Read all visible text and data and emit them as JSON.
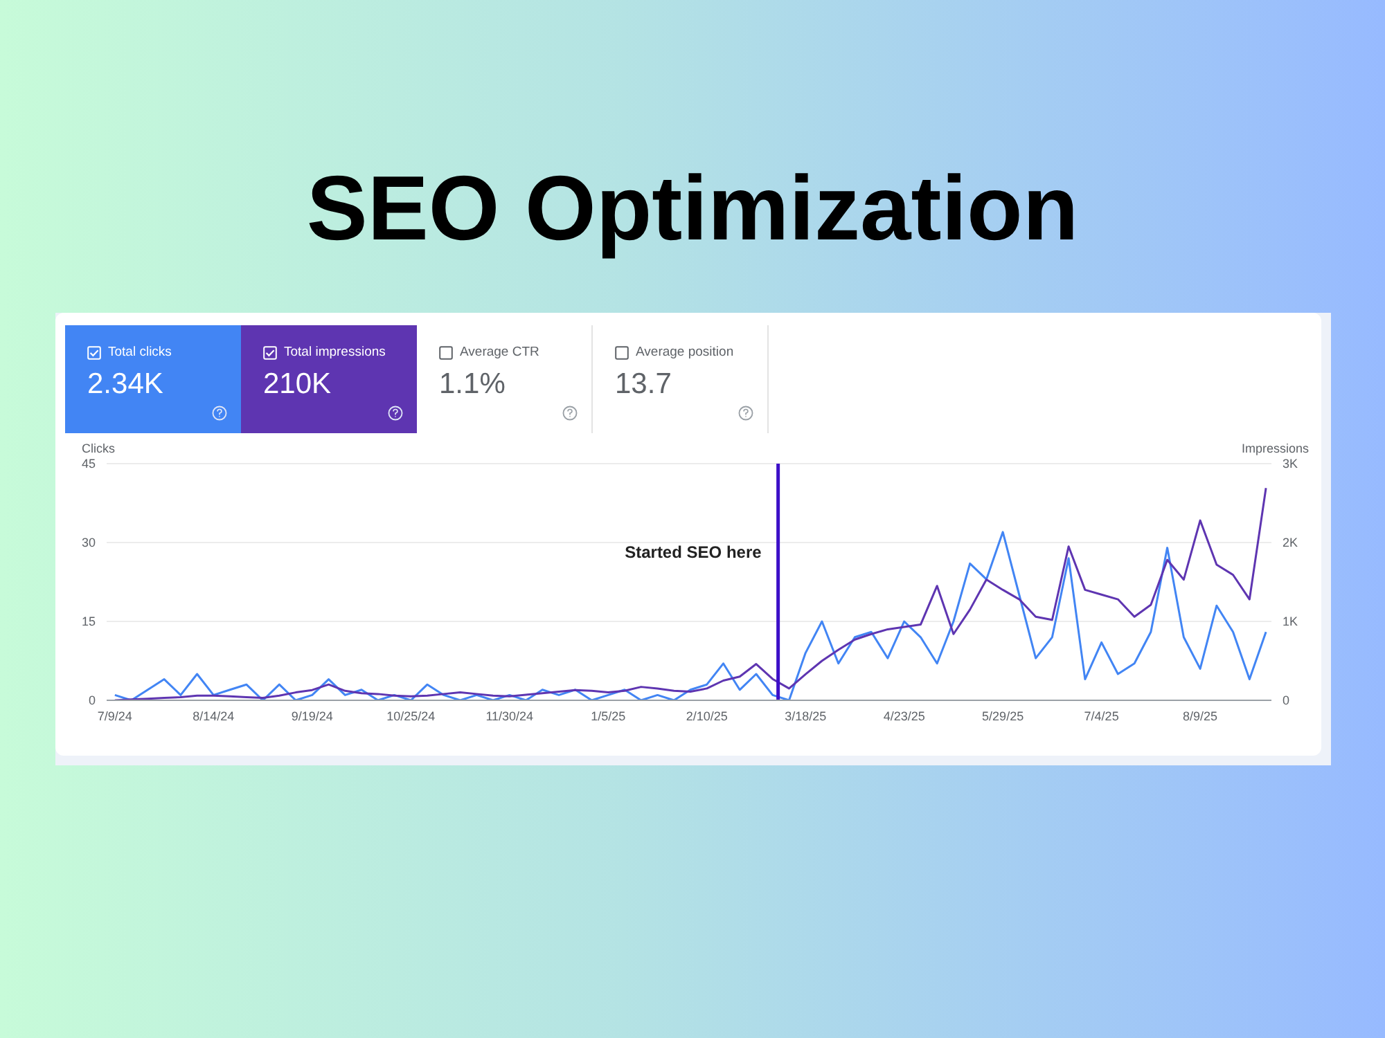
{
  "chart_data": [
    {
      "type": "other",
      "title": "SEO Optimization",
      "annotations": [
        "Total clicks",
        "2.34K",
        "Total impressions",
        "210K",
        "Average CTR",
        "1.1%",
        "Average position",
        "13.7"
      ],
      "colors": [
        "#4285f4",
        "#5e35b1",
        null,
        null
      ]
    },
    {
      "type": "line",
      "ylabel": "Clicks",
      "y2label": "Impressions",
      "grid": "y",
      "legend": false,
      "marker": "none",
      "line_style": "solid",
      "x": [
        "2024-07-09",
        "2024-07-15",
        "2024-07-21",
        "2024-07-27",
        "2024-08-02",
        "2024-08-08",
        "2024-08-14",
        "2024-08-20",
        "2024-08-26",
        "2024-09-01",
        "2024-09-07",
        "2024-09-13",
        "2024-09-19",
        "2024-09-25",
        "2024-10-01",
        "2024-10-07",
        "2024-10-13",
        "2024-10-19",
        "2024-10-25",
        "2024-10-31",
        "2024-11-06",
        "2024-11-12",
        "2024-11-18",
        "2024-11-24",
        "2024-11-30",
        "2024-12-06",
        "2024-12-12",
        "2024-12-18",
        "2024-12-24",
        "2024-12-30",
        "2025-01-05",
        "2025-01-11",
        "2025-01-17",
        "2025-01-23",
        "2025-01-29",
        "2025-02-04",
        "2025-02-10",
        "2025-02-16",
        "2025-02-22",
        "2025-02-28",
        "2025-03-06",
        "2025-03-12",
        "2025-03-18",
        "2025-03-24",
        "2025-03-30",
        "2025-04-05",
        "2025-04-11",
        "2025-04-17",
        "2025-04-23",
        "2025-04-29",
        "2025-05-05",
        "2025-05-11",
        "2025-05-17",
        "2025-05-23",
        "2025-05-29",
        "2025-06-04",
        "2025-06-10",
        "2025-06-16",
        "2025-06-22",
        "2025-06-28",
        "2025-07-04",
        "2025-07-10",
        "2025-07-16",
        "2025-07-22",
        "2025-07-28",
        "2025-08-03",
        "2025-08-09",
        "2025-08-15",
        "2025-08-21",
        "2025-08-27",
        "2025-09-02"
      ],
      "series": [
        {
          "color": "#4285f4",
          "values": [
            1,
            0,
            2,
            4,
            1,
            5,
            1,
            2,
            3,
            0,
            3,
            0,
            1,
            4,
            1,
            2,
            0,
            1,
            0,
            3,
            1,
            0,
            1,
            0,
            1,
            0,
            2,
            1,
            2,
            0,
            1,
            2,
            0,
            1,
            0,
            2,
            3,
            7,
            2,
            5,
            1,
            0,
            9,
            15,
            7,
            12,
            13,
            8,
            15,
            12,
            7,
            15,
            26,
            23,
            32,
            20,
            8,
            12,
            27,
            4,
            11,
            5,
            7,
            13,
            29,
            12,
            6,
            18,
            13,
            4,
            13
          ]
        },
        {
          "color": "#5e35b1",
          "axis": "y2",
          "values": [
            0,
            10,
            20,
            30,
            40,
            60,
            60,
            50,
            40,
            30,
            60,
            100,
            130,
            200,
            120,
            90,
            80,
            60,
            50,
            60,
            80,
            100,
            80,
            60,
            50,
            70,
            90,
            110,
            130,
            120,
            100,
            120,
            170,
            150,
            120,
            110,
            150,
            250,
            300,
            460,
            270,
            150,
            330,
            500,
            640,
            770,
            840,
            900,
            930,
            960,
            1450,
            840,
            1150,
            1530,
            1400,
            1280,
            1060,
            1020,
            1950,
            1400,
            1340,
            1280,
            1060,
            1210,
            1780,
            1530,
            2280,
            1720,
            1590,
            1280,
            2690
          ]
        }
      ],
      "xlim": [
        "2024-07-06",
        "2025-09-04"
      ],
      "xticks": [
        {
          "value": "2024-07-09",
          "label": "7/9/24"
        },
        {
          "value": "2024-08-14",
          "label": "8/14/24"
        },
        {
          "value": "2024-09-19",
          "label": "9/19/24"
        },
        {
          "value": "2024-10-25",
          "label": "10/25/24"
        },
        {
          "value": "2024-11-30",
          "label": "11/30/24"
        },
        {
          "value": "2025-01-05",
          "label": "1/5/25"
        },
        {
          "value": "2025-02-10",
          "label": "2/10/25"
        },
        {
          "value": "2025-03-18",
          "label": "3/18/25"
        },
        {
          "value": "2025-04-23",
          "label": "4/23/25"
        },
        {
          "value": "2025-05-29",
          "label": "5/29/25"
        },
        {
          "value": "2025-07-04",
          "label": "7/4/25"
        },
        {
          "value": "2025-08-09",
          "label": "8/9/25"
        }
      ],
      "ylim": [
        0,
        45
      ],
      "yticks": [
        0,
        15,
        30,
        45
      ],
      "y2lim": [
        0,
        3000
      ],
      "y2ticks": [
        0,
        {
          "value": 1000,
          "label": "1K"
        },
        {
          "value": 2000,
          "label": "2K"
        },
        {
          "value": 3000,
          "label": "3K"
        }
      ],
      "ref_lines": [
        {
          "axis": "x",
          "value": "2025-03-08",
          "label": "Started SEO here",
          "color": "#3d0fc8"
        }
      ]
    }
  ]
}
